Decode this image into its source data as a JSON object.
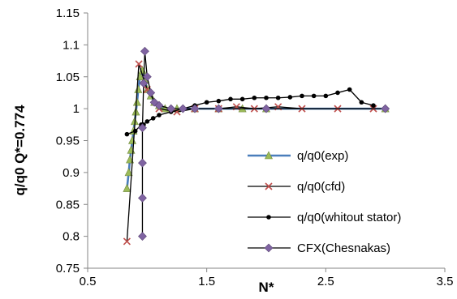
{
  "chart_data": {
    "type": "line",
    "xlabel": "N*",
    "ylabel": "q/q0  Q*=0.774",
    "xlim": [
      0.5,
      3.5
    ],
    "ylim": [
      0.75,
      1.15
    ],
    "xticks": [
      0.5,
      1.5,
      2.5,
      3.5
    ],
    "xtick_labels": [
      "0.5",
      "1.5",
      "2.5",
      "3.5"
    ],
    "yticks": [
      0.75,
      0.8,
      0.85,
      0.9,
      0.95,
      1.0,
      1.05,
      1.1,
      1.15
    ],
    "ytick_labels": [
      "0.75",
      "0.8",
      "0.85",
      "0.9",
      "0.95",
      "1",
      "1.05",
      "1.1",
      "1.15"
    ],
    "grid": false,
    "legend_position": "right",
    "series": [
      {
        "name": "q/q0(exp)",
        "color": "#4a7ebb",
        "marker": "triangle",
        "marker_color": "#9bbb59",
        "x": [
          0.83,
          0.845,
          0.855,
          0.865,
          0.875,
          0.885,
          0.895,
          0.905,
          0.915,
          0.925,
          0.94,
          0.96,
          0.98,
          1.0,
          1.03,
          1.06,
          1.1,
          1.15,
          1.25,
          1.4,
          1.6,
          1.8,
          2.0,
          3.0
        ],
        "y": [
          0.875,
          0.9,
          0.92,
          0.935,
          0.95,
          0.965,
          0.98,
          0.995,
          1.01,
          1.03,
          1.05,
          1.06,
          1.045,
          1.03,
          1.02,
          1.01,
          1.005,
          1.0,
          1.0,
          1.0,
          1.0,
          1.0,
          1.0,
          1.0
        ]
      },
      {
        "name": "q/q0(cfd)",
        "color": "#000000",
        "marker": "x",
        "marker_color": "#c0504d",
        "x": [
          0.83,
          0.93,
          1.0,
          1.1,
          1.25,
          1.4,
          1.6,
          1.75,
          1.9,
          2.1,
          2.3,
          2.6,
          2.9
        ],
        "y": [
          0.792,
          1.07,
          1.03,
          1.0,
          0.995,
          1.0,
          1.0,
          1.003,
          1.0,
          1.003,
          1.0,
          1.0,
          1.0
        ]
      },
      {
        "name": "q/q0(whitout stator)",
        "color": "#000000",
        "marker": "circle",
        "marker_color": "#000000",
        "x": [
          0.83,
          0.9,
          0.95,
          0.97,
          1.0,
          1.05,
          1.1,
          1.2,
          1.3,
          1.4,
          1.5,
          1.6,
          1.7,
          1.8,
          1.9,
          2.0,
          2.1,
          2.2,
          2.3,
          2.4,
          2.5,
          2.6,
          2.7,
          2.8,
          2.9
        ],
        "y": [
          0.96,
          0.965,
          0.975,
          0.975,
          0.98,
          0.985,
          0.99,
          0.995,
          1.0,
          1.005,
          1.01,
          1.012,
          1.015,
          1.015,
          1.017,
          1.017,
          1.017,
          1.018,
          1.02,
          1.02,
          1.02,
          1.025,
          1.03,
          1.01,
          1.005
        ]
      },
      {
        "name": "CFX(Chesnakas)",
        "color": "#000000",
        "marker": "diamond",
        "marker_color": "#8064a2",
        "x": [
          0.96,
          0.96,
          0.96,
          0.96,
          0.97,
          0.98,
          1.0,
          1.03,
          1.06,
          1.1,
          1.2,
          1.3,
          1.4,
          1.6,
          2.0,
          3.0
        ],
        "y": [
          0.8,
          0.86,
          0.915,
          0.97,
          1.04,
          1.09,
          1.05,
          1.025,
          1.01,
          1.005,
          1.0,
          1.0,
          1.0,
          1.0,
          1.0,
          1.0
        ]
      }
    ]
  }
}
